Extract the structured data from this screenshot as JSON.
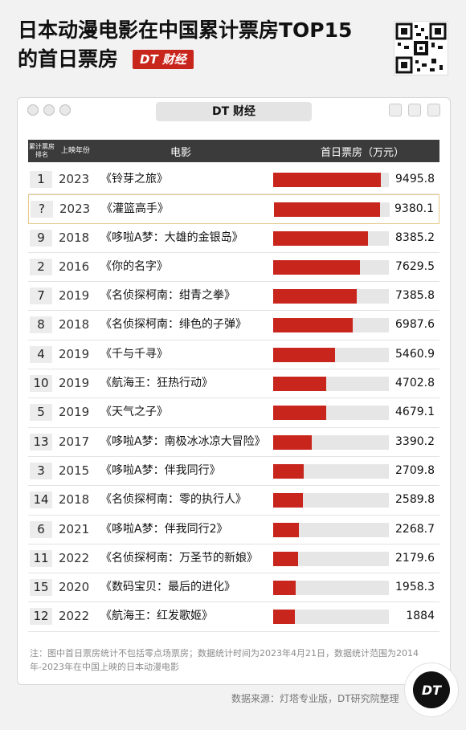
{
  "header": {
    "title_line1": "日本动漫电影在中国累计票房TOP15",
    "title_line2": "的首日票房",
    "brand_badge": "DT 财经"
  },
  "card": {
    "titlebar": "DT 财经"
  },
  "table": {
    "headers": {
      "rank": "累计票房排名",
      "year": "上映年份",
      "film": "电影",
      "box_office": "首日票房（万元）"
    }
  },
  "chart_data": {
    "type": "bar",
    "title": "日本动漫电影在中国累计票房TOP15的首日票房",
    "ylabel": "首日票房（万元）",
    "ylim": [
      0,
      9495.8
    ],
    "rows": [
      {
        "rank": "1",
        "year": "2023",
        "film": "《铃芽之旅》",
        "value": 9495.8,
        "label": "9495.8"
      },
      {
        "rank": "?",
        "year": "2023",
        "film": "《灌篮高手》",
        "value": 9380.1,
        "label": "9380.1",
        "highlight": true
      },
      {
        "rank": "9",
        "year": "2018",
        "film": "《哆啦A梦：大雄的金银岛》",
        "value": 8385.2,
        "label": "8385.2"
      },
      {
        "rank": "2",
        "year": "2016",
        "film": "《你的名字》",
        "value": 7629.5,
        "label": "7629.5"
      },
      {
        "rank": "7",
        "year": "2019",
        "film": "《名侦探柯南：绀青之拳》",
        "value": 7385.8,
        "label": "7385.8"
      },
      {
        "rank": "8",
        "year": "2018",
        "film": "《名侦探柯南：绯色的子弹》",
        "value": 6987.6,
        "label": "6987.6"
      },
      {
        "rank": "4",
        "year": "2019",
        "film": "《千与千寻》",
        "value": 5460.9,
        "label": "5460.9"
      },
      {
        "rank": "10",
        "year": "2019",
        "film": "《航海王：狂热行动》",
        "value": 4702.8,
        "label": "4702.8"
      },
      {
        "rank": "5",
        "year": "2019",
        "film": "《天气之子》",
        "value": 4679.1,
        "label": "4679.1"
      },
      {
        "rank": "13",
        "year": "2017",
        "film": "《哆啦A梦：南极冰冰凉大冒险》",
        "value": 3390.2,
        "label": "3390.2"
      },
      {
        "rank": "3",
        "year": "2015",
        "film": "《哆啦A梦：伴我同行》",
        "value": 2709.8,
        "label": "2709.8"
      },
      {
        "rank": "14",
        "year": "2018",
        "film": "《名侦探柯南：零的执行人》",
        "value": 2589.8,
        "label": "2589.8"
      },
      {
        "rank": "6",
        "year": "2021",
        "film": "《哆啦A梦：伴我同行2》",
        "value": 2268.7,
        "label": "2268.7"
      },
      {
        "rank": "11",
        "year": "2022",
        "film": "《名侦探柯南：万圣节的新娘》",
        "value": 2179.6,
        "label": "2179.6"
      },
      {
        "rank": "15",
        "year": "2020",
        "film": "《数码宝贝：最后的进化》",
        "value": 1958.3,
        "label": "1958.3"
      },
      {
        "rank": "12",
        "year": "2022",
        "film": "《航海王：红发歌姬》",
        "value": 1884,
        "label": "1884"
      }
    ]
  },
  "footer": {
    "note": "注：图中首日票房统计不包括零点场票房；数据统计时间为2023年4月21日，数据统计范围为2014年-2023年在中国上映的日本动漫电影",
    "source": "数据来源：灯塔专业版，DT研究院整理",
    "logo": "DT"
  },
  "colors": {
    "bar": "#c8251d",
    "header_bg": "#3b3b3b",
    "highlight_border": "#e4c98a"
  },
  "icons": {
    "qr": "qr-code-icon",
    "window_controls": [
      "window-close-icon",
      "window-minimize-icon",
      "window-maximize-icon"
    ]
  }
}
